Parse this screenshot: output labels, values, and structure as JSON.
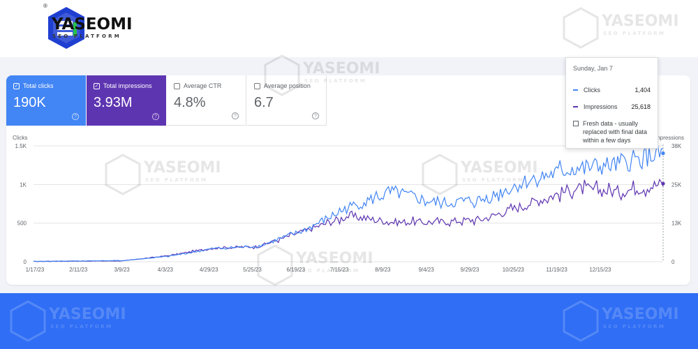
{
  "brand": {
    "name": "YASEOMI",
    "tagline": "SEO PLATFORM",
    "registered_mark": "®",
    "colors": {
      "primary": "#1f3fd1",
      "green": "#27c24c"
    }
  },
  "watermark": {
    "name": "YASEOMI",
    "tagline": "SEO PLATFORM"
  },
  "metrics": [
    {
      "label": "Total clicks",
      "value": "190K",
      "checked": true,
      "color": "#4285f4"
    },
    {
      "label": "Total impressions",
      "value": "3.93M",
      "checked": true,
      "color": "#5e35b1"
    },
    {
      "label": "Average CTR",
      "value": "4.8%",
      "checked": false
    },
    {
      "label": "Average position",
      "value": "6.7",
      "checked": false
    }
  ],
  "tooltip": {
    "date": "Sunday, Jan 7",
    "clicks_label": "Clicks",
    "clicks_value": "1,404",
    "impressions_label": "Impressions",
    "impressions_value": "25,618",
    "fresh_note": "Fresh data - usually replaced with final data within a few days"
  },
  "chart_data": {
    "type": "line",
    "left_axis_title": "Clicks",
    "right_axis_title": "Impressions",
    "left_ticks": [
      "1.5K",
      "1K",
      "500",
      "0"
    ],
    "right_ticks": [
      "38K",
      "25K",
      "13K",
      "0"
    ],
    "x_ticks": [
      "1/17/23",
      "2/11/23",
      "3/9/23",
      "4/3/23",
      "4/29/23",
      "5/25/23",
      "6/19/23",
      "7/15/23",
      "8/9/23",
      "9/4/23",
      "9/29/23",
      "10/25/23",
      "11/19/23",
      "12/15/23"
    ],
    "left_ylim": [
      0,
      1500
    ],
    "right_ylim": [
      0,
      38000
    ],
    "grid": true,
    "series": [
      {
        "name": "Clicks",
        "color": "#4285f4",
        "axis": "left",
        "x": [
          "1/17/23",
          "2/11/23",
          "3/9/23",
          "4/3/23",
          "4/29/23",
          "5/25/23",
          "6/19/23",
          "7/15/23",
          "8/9/23",
          "9/4/23",
          "9/29/23",
          "10/25/23",
          "11/19/23",
          "12/15/23",
          "1/7/24"
        ],
        "values": [
          5,
          10,
          15,
          70,
          170,
          200,
          400,
          700,
          900,
          750,
          800,
          1050,
          1200,
          1250,
          1404
        ]
      },
      {
        "name": "Impressions",
        "color": "#5e35b1",
        "axis": "right",
        "x": [
          "1/17/23",
          "2/11/23",
          "3/9/23",
          "4/3/23",
          "4/29/23",
          "5/25/23",
          "6/19/23",
          "7/15/23",
          "8/9/23",
          "9/4/23",
          "9/29/23",
          "10/25/23",
          "11/19/23",
          "12/15/23",
          "1/7/24"
        ],
        "values": [
          100,
          200,
          300,
          2000,
          4500,
          5000,
          10000,
          15000,
          13000,
          13000,
          14000,
          19000,
          24000,
          23000,
          25618
        ]
      }
    ]
  }
}
